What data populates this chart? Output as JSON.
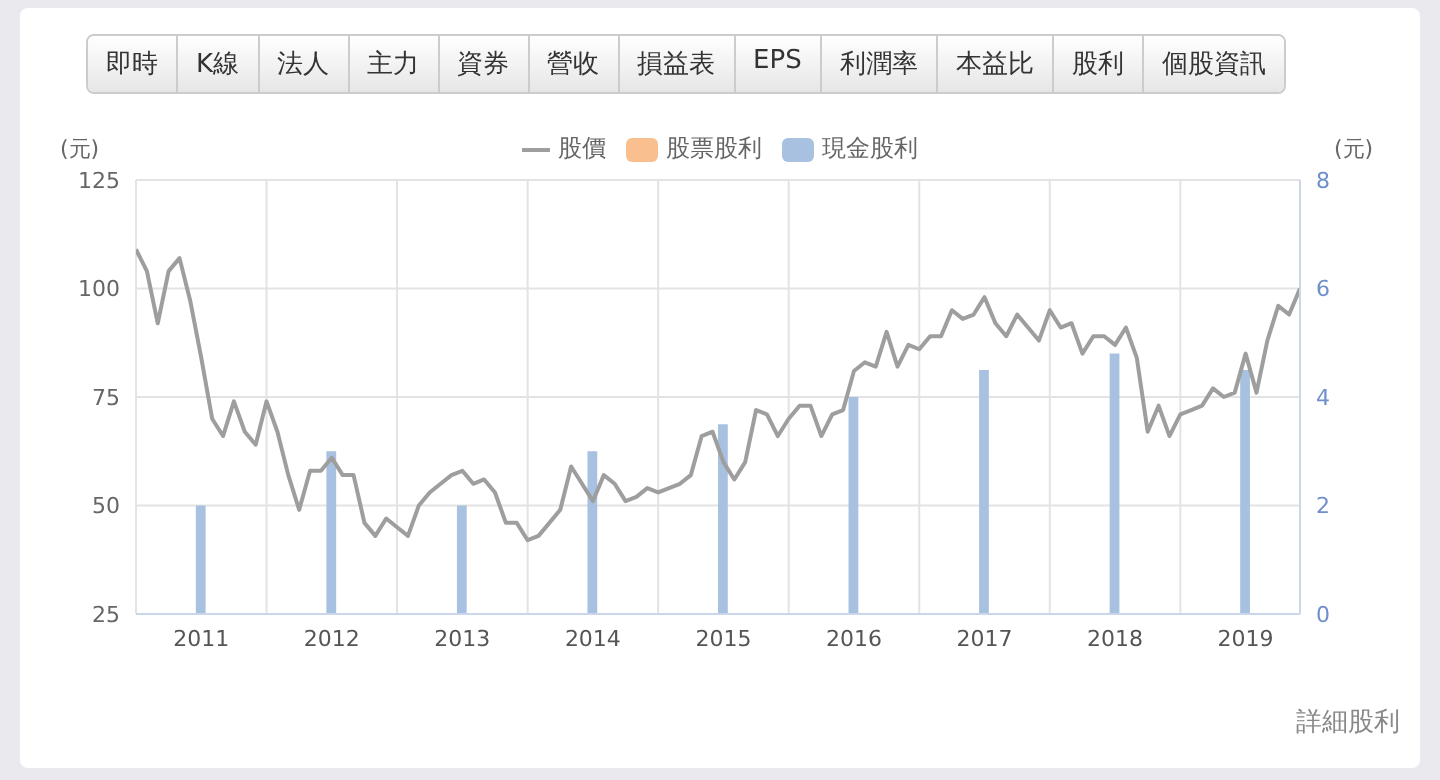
{
  "chart_data": {
    "type": "bar",
    "stacked": true,
    "x": [
      "2011-07",
      "2012-07",
      "2013-07",
      "2014-07",
      "2015-07",
      "2016-07",
      "2017-07",
      "2018-07",
      "2019-07"
    ],
    "xlim": [
      "2011-01",
      "2019-12"
    ],
    "xticks": [
      {
        "value": "2011-01",
        "label": null
      },
      {
        "value": "2011-07",
        "label": "2011"
      },
      {
        "value": "2012-01",
        "label": null
      },
      {
        "value": "2012-07",
        "label": "2012"
      },
      {
        "value": "2013-01",
        "label": null
      },
      {
        "value": "2013-07",
        "label": "2013"
      },
      {
        "value": "2014-01",
        "label": null
      },
      {
        "value": "2014-07",
        "label": "2014"
      },
      {
        "value": "2015-01",
        "label": null
      },
      {
        "value": "2015-07",
        "label": "2015"
      },
      {
        "value": "2016-01",
        "label": null
      },
      {
        "value": "2016-07",
        "label": "2016"
      },
      {
        "value": "2017-01",
        "label": null
      },
      {
        "value": "2017-07",
        "label": "2017"
      },
      {
        "value": "2018-01",
        "label": null
      },
      {
        "value": "2018-07",
        "label": "2018"
      },
      {
        "value": "2019-01",
        "label": null
      },
      {
        "value": "2019-07",
        "label": "2019"
      }
    ],
    "series": [
      {
        "name": "股價",
        "type": "line",
        "color": "#9e9e9e",
        "x": [
          "2011-01",
          "2011-02",
          "2011-03",
          "2011-04",
          "2011-05",
          "2011-06",
          "2011-07",
          "2011-08",
          "2011-09",
          "2011-10",
          "2011-11",
          "2011-12",
          "2012-01",
          "2012-02",
          "2012-03",
          "2012-04",
          "2012-05",
          "2012-06",
          "2012-07",
          "2012-08",
          "2012-09",
          "2012-10",
          "2012-11",
          "2012-12",
          "2013-01",
          "2013-02",
          "2013-03",
          "2013-04",
          "2013-05",
          "2013-06",
          "2013-07",
          "2013-08",
          "2013-09",
          "2013-10",
          "2013-11",
          "2013-12",
          "2014-01",
          "2014-02",
          "2014-03",
          "2014-04",
          "2014-05",
          "2014-06",
          "2014-07",
          "2014-08",
          "2014-09",
          "2014-10",
          "2014-11",
          "2014-12",
          "2015-01",
          "2015-02",
          "2015-03",
          "2015-04",
          "2015-05",
          "2015-06",
          "2015-07",
          "2015-08",
          "2015-09",
          "2015-10",
          "2015-11",
          "2015-12",
          "2016-01",
          "2016-02",
          "2016-03",
          "2016-04",
          "2016-05",
          "2016-06",
          "2016-07",
          "2016-08",
          "2016-09",
          "2016-10",
          "2016-11",
          "2016-12",
          "2017-01",
          "2017-02",
          "2017-03",
          "2017-04",
          "2017-05",
          "2017-06",
          "2017-07",
          "2017-08",
          "2017-09",
          "2017-10",
          "2017-11",
          "2017-12",
          "2018-01",
          "2018-02",
          "2018-03",
          "2018-04",
          "2018-05",
          "2018-06",
          "2018-07",
          "2018-08",
          "2018-09",
          "2018-10",
          "2018-11",
          "2018-12",
          "2019-01",
          "2019-02",
          "2019-03",
          "2019-04",
          "2019-05",
          "2019-06",
          "2019-07",
          "2019-08",
          "2019-09",
          "2019-10",
          "2019-11",
          "2019-12"
        ],
        "values": [
          109,
          104,
          92,
          104,
          107,
          97,
          84,
          70,
          66,
          74,
          67,
          64,
          74,
          67,
          57,
          49,
          58,
          58,
          61,
          57,
          57,
          46,
          43,
          47,
          45,
          43,
          50,
          53,
          55,
          57,
          58,
          55,
          56,
          53,
          46,
          46,
          42,
          43,
          46,
          49,
          59,
          55,
          51,
          57,
          55,
          51,
          52,
          54,
          53,
          54,
          55,
          57,
          66,
          67,
          60,
          56,
          60,
          72,
          71,
          66,
          70,
          73,
          73,
          66,
          71,
          72,
          81,
          83,
          82,
          90,
          82,
          87,
          86,
          89,
          89,
          95,
          93,
          94,
          98,
          92,
          89,
          94,
          91,
          88,
          95,
          91,
          92,
          85,
          89,
          89,
          87,
          91,
          84,
          67,
          73,
          66,
          71,
          72,
          73,
          77,
          75,
          76,
          85,
          76,
          88,
          96,
          94,
          100
        ]
      },
      {
        "name": "股票股利",
        "axis": "y2",
        "color": "#f9bf8f",
        "values": [
          null,
          null,
          null,
          null,
          null,
          null,
          null,
          null,
          null
        ]
      },
      {
        "name": "現金股利",
        "axis": "y2",
        "color": "#a9c1e0",
        "values": [
          2,
          3,
          2,
          3,
          3.5,
          4,
          4.5,
          4.8,
          4.5
        ]
      }
    ],
    "ylabel": "(元)",
    "y2label": "(元)",
    "ylim": [
      25,
      125
    ],
    "yticks": [
      25,
      50,
      75,
      100,
      125
    ],
    "y2lim": [
      0,
      8
    ],
    "y2ticks": [
      0,
      2,
      4,
      6,
      8
    ],
    "grid": true,
    "legend": "top",
    "annotations": [
      "即時",
      "K線",
      "法人",
      "主力",
      "資券",
      "營收",
      "損益表",
      "EPS",
      "利潤率",
      "本益比",
      "股利",
      "個股資訊",
      "詳細股利"
    ]
  }
}
